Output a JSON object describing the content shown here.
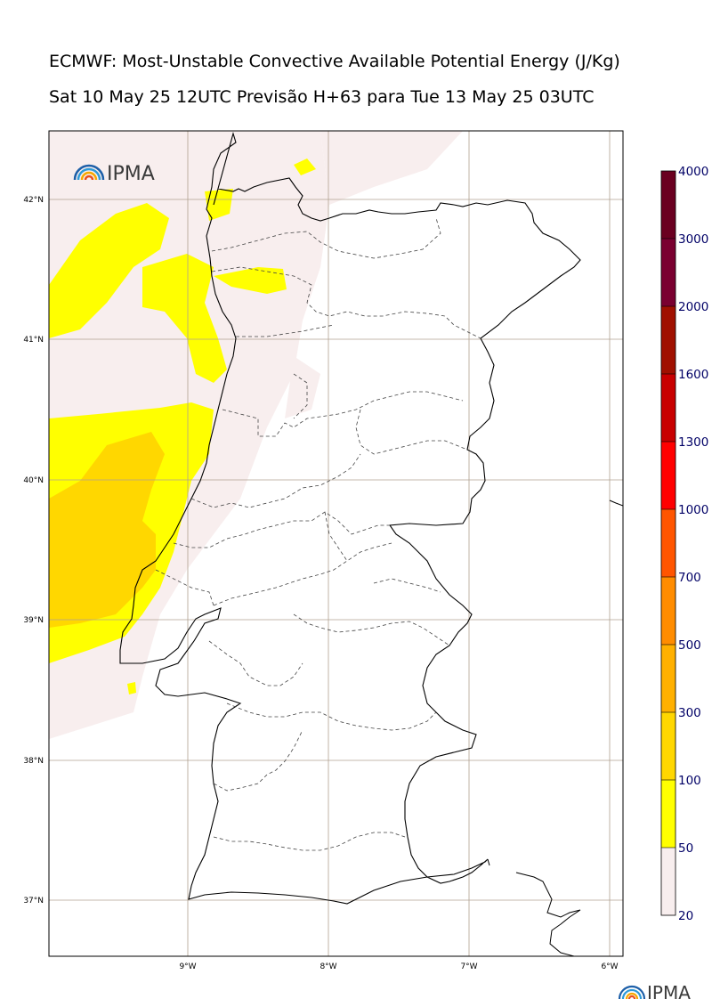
{
  "title": "ECMWF: Most-Unstable Convective Available Potential Energy (J/Kg)",
  "subtitle": "Sat 10 May 25 12UTC Previsão H+63 para Tue 13 May 25 03UTC",
  "logo": {
    "text": "IPMA",
    "colors": [
      "#e94e1b",
      "#f6a800",
      "#2f9ad8",
      "#1d5fa8"
    ]
  },
  "lat_labels": [
    "42°N",
    "41°N",
    "40°N",
    "39°N",
    "38°N",
    "37°N"
  ],
  "lon_labels": [
    "9°W",
    "8°W",
    "7°W",
    "6°W"
  ],
  "colorbar": {
    "labels": [
      "20",
      "50",
      "100",
      "300",
      "500",
      "700",
      "1000",
      "1300",
      "1600",
      "2000",
      "3000",
      "4000"
    ],
    "colors": [
      "#f8eeee",
      "#ffff00",
      "#ffd700",
      "#ffb000",
      "#ff8c00",
      "#ff5500",
      "#ff0000",
      "#c80000",
      "#a01000",
      "#7a0030",
      "#6a0020"
    ]
  }
}
